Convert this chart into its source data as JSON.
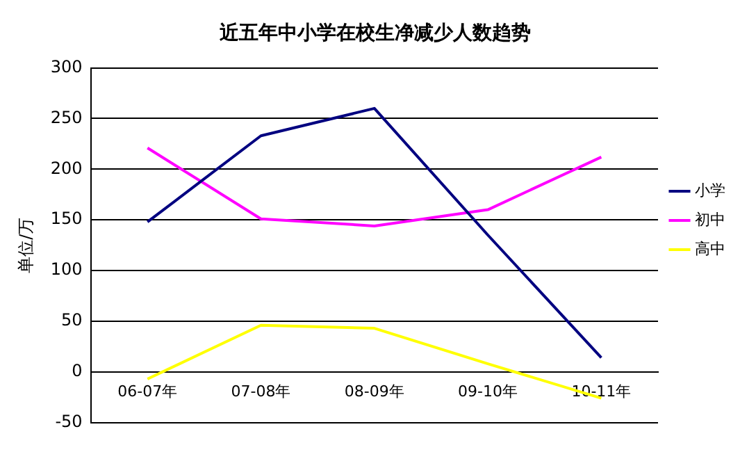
{
  "chart_data": {
    "type": "line",
    "title": "近五年中小学在校生净减少人数趋势",
    "ylabel": "单位/万",
    "categories": [
      "06-07年",
      "07-08年",
      "08-09年",
      "09-10年",
      "10-11年"
    ],
    "series": [
      {
        "name": "小学",
        "color": "#000080",
        "values": [
          148,
          233,
          260,
          135,
          14
        ]
      },
      {
        "name": "初中",
        "color": "#ff00ff",
        "values": [
          221,
          151,
          144,
          160,
          212
        ]
      },
      {
        "name": "高中",
        "color": "#ffff00",
        "values": [
          -7,
          46,
          43,
          8,
          -26
        ]
      }
    ],
    "ylim": [
      -50,
      300
    ],
    "yticks": [
      -50,
      0,
      50,
      100,
      150,
      200,
      250,
      300
    ],
    "grid": "y",
    "legend": "right",
    "marker": "none"
  }
}
